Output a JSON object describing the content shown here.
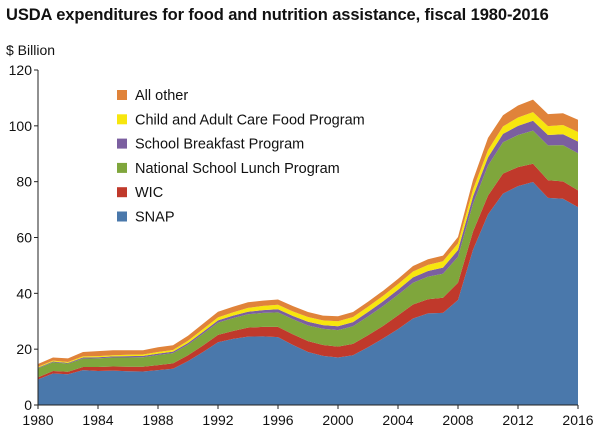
{
  "title": "USDA expenditures for food and nutrition assistance, fiscal 1980-2016",
  "ylabel": "$ Billion",
  "chart_data": {
    "type": "area",
    "stacked": true,
    "title": "USDA expenditures for food and nutrition assistance, fiscal 1980-2016",
    "xlabel": "",
    "ylabel": "$ Billion",
    "xlim": [
      1980,
      2016
    ],
    "ylim": [
      0,
      120
    ],
    "x_ticks": [
      1980,
      1984,
      1988,
      1992,
      1996,
      2000,
      2004,
      2008,
      2012,
      2016
    ],
    "y_ticks": [
      0,
      20,
      40,
      60,
      80,
      100,
      120
    ],
    "grid": false,
    "legend_position": "top-left",
    "x": [
      1980,
      1981,
      1982,
      1983,
      1984,
      1985,
      1986,
      1987,
      1988,
      1989,
      1990,
      1991,
      1992,
      1993,
      1994,
      1995,
      1996,
      1997,
      1998,
      1999,
      2000,
      2001,
      2002,
      2003,
      2004,
      2005,
      2006,
      2007,
      2008,
      2009,
      2010,
      2011,
      2012,
      2013,
      2014,
      2015,
      2016
    ],
    "series": [
      {
        "name": "SNAP",
        "color": "#4a78ab",
        "values": [
          9.2,
          11.3,
          11.0,
          12.5,
          12.2,
          12.3,
          12.1,
          12.0,
          12.5,
          13.0,
          15.7,
          19.0,
          22.5,
          23.7,
          24.5,
          24.6,
          24.3,
          21.5,
          19.0,
          17.6,
          17.0,
          17.8,
          20.7,
          23.8,
          27.2,
          31.0,
          32.8,
          33.0,
          37.6,
          55.6,
          68.3,
          75.7,
          78.4,
          79.9,
          74.2,
          73.9,
          70.9
        ]
      },
      {
        "name": "WIC",
        "color": "#c0392b",
        "values": [
          0.7,
          0.9,
          0.9,
          1.1,
          1.4,
          1.5,
          1.6,
          1.7,
          1.8,
          1.9,
          2.1,
          2.3,
          2.6,
          2.8,
          3.2,
          3.4,
          3.7,
          3.8,
          3.9,
          3.9,
          3.9,
          4.1,
          4.3,
          4.5,
          4.9,
          5.0,
          5.1,
          5.4,
          6.2,
          6.5,
          6.7,
          7.2,
          6.8,
          6.5,
          6.3,
          6.2,
          6.0
        ]
      },
      {
        "name": "National School Lunch Program",
        "color": "#7fa63c",
        "values": [
          3.2,
          3.1,
          2.9,
          3.0,
          3.1,
          3.2,
          3.3,
          3.4,
          3.6,
          3.7,
          3.8,
          4.2,
          4.4,
          4.6,
          4.8,
          5.0,
          5.2,
          5.4,
          5.6,
          5.8,
          5.9,
          6.3,
          6.7,
          7.1,
          7.4,
          7.8,
          8.1,
          8.6,
          9.3,
          10.0,
          10.8,
          11.2,
          11.5,
          11.9,
          12.5,
          13.0,
          13.3
        ]
      },
      {
        "name": "School Breakfast Program",
        "color": "#7b5fa0",
        "values": [
          0.3,
          0.3,
          0.3,
          0.4,
          0.4,
          0.4,
          0.5,
          0.5,
          0.5,
          0.5,
          0.6,
          0.7,
          0.8,
          0.9,
          0.9,
          1.0,
          1.1,
          1.2,
          1.3,
          1.3,
          1.4,
          1.5,
          1.6,
          1.7,
          1.8,
          1.9,
          2.0,
          2.2,
          2.4,
          2.6,
          2.9,
          3.0,
          3.3,
          3.5,
          3.7,
          3.9,
          4.2
        ]
      },
      {
        "name": "Child and Adult Care Food Program",
        "color": "#f7e60e",
        "values": [
          0.3,
          0.3,
          0.3,
          0.4,
          0.4,
          0.4,
          0.5,
          0.5,
          0.6,
          0.6,
          0.8,
          1.0,
          1.1,
          1.2,
          1.4,
          1.5,
          1.6,
          1.6,
          1.7,
          1.7,
          1.8,
          1.8,
          1.9,
          2.0,
          2.0,
          2.1,
          2.2,
          2.3,
          2.4,
          2.5,
          2.6,
          2.7,
          3.0,
          3.1,
          3.2,
          3.3,
          3.4
        ]
      },
      {
        "name": "All other",
        "color": "#e0833a",
        "values": [
          1.0,
          1.1,
          1.3,
          1.6,
          1.8,
          1.8,
          1.6,
          1.5,
          1.7,
          1.7,
          1.8,
          1.9,
          2.0,
          2.0,
          2.0,
          1.9,
          1.9,
          1.9,
          1.8,
          1.7,
          1.8,
          1.8,
          1.8,
          1.8,
          1.9,
          2.0,
          2.0,
          2.0,
          2.3,
          3.4,
          4.4,
          4.0,
          4.3,
          4.5,
          4.3,
          4.2,
          4.4
        ]
      }
    ]
  }
}
